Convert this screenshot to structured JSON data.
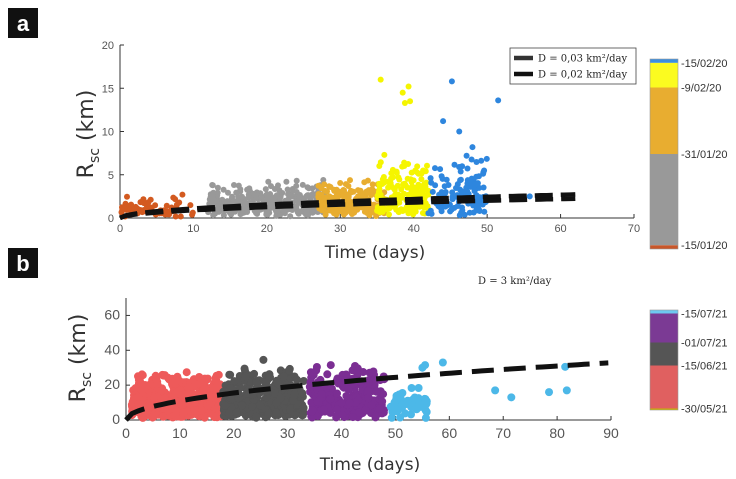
{
  "panels": [
    {
      "label": "a",
      "chart_data": {
        "type": "scatter",
        "xlabel": "Time (days)",
        "ylabel_main": "R",
        "ylabel_sub": "sc",
        "ylabel_unit": " (km)",
        "xlim": [
          0,
          70
        ],
        "ylim": [
          0,
          20
        ],
        "xticks": [
          0,
          10,
          20,
          30,
          40,
          50,
          60,
          70
        ],
        "yticks": [
          0,
          5,
          10,
          15,
          20
        ],
        "grid": false,
        "legend_position": "top-right",
        "legend": [
          {
            "text": "D = 0,03 km²/day"
          },
          {
            "text": "D = 0,02 km²/day"
          }
        ],
        "curves": [
          {
            "D": 0.03,
            "x_start": 0,
            "x_end": 62
          },
          {
            "D": 0.02,
            "x_start": 0,
            "x_end": 62
          }
        ],
        "groups": [
          {
            "x_range": [
              0,
              10
            ],
            "y_median": 0.6,
            "y_spread": 1.6,
            "n": 70,
            "color": "#d35a20"
          },
          {
            "x_range": [
              12,
              28
            ],
            "y_median": 0.9,
            "y_spread": 2.9,
            "n": 330,
            "color": "#999999"
          },
          {
            "x_range": [
              27,
              36
            ],
            "y_median": 1.0,
            "y_spread": 2.8,
            "n": 220,
            "color": "#e8ad30"
          },
          {
            "x_range": [
              35,
              42
            ],
            "y_median": 1.3,
            "y_spread": 4.5,
            "n": 170,
            "color": "#f5f500"
          },
          {
            "x_range": [
              42,
              50
            ],
            "y_median": 1.5,
            "y_spread": 4.5,
            "n": 120,
            "color": "#2e86de"
          }
        ],
        "outliers": [
          {
            "x": 35.5,
            "y": 16.0,
            "color": "#f5f500"
          },
          {
            "x": 38.5,
            "y": 14.5,
            "color": "#f5f500"
          },
          {
            "x": 39.3,
            "y": 15.2,
            "color": "#f5f500"
          },
          {
            "x": 38.8,
            "y": 13.3,
            "color": "#f5f500"
          },
          {
            "x": 39.5,
            "y": 13.5,
            "color": "#f5f500"
          },
          {
            "x": 36.0,
            "y": 7.3,
            "color": "#f5f500"
          },
          {
            "x": 38.7,
            "y": 6.4,
            "color": "#f5f500"
          },
          {
            "x": 45.2,
            "y": 15.8,
            "color": "#2e86de"
          },
          {
            "x": 51.5,
            "y": 13.6,
            "color": "#2e86de"
          },
          {
            "x": 44.0,
            "y": 11.2,
            "color": "#2e86de"
          },
          {
            "x": 46.2,
            "y": 10.0,
            "color": "#2e86de"
          },
          {
            "x": 48.0,
            "y": 8.2,
            "color": "#2e86de"
          },
          {
            "x": 47.2,
            "y": 7.2,
            "color": "#2e86de"
          },
          {
            "x": 55.8,
            "y": 2.5,
            "color": "#2e86de"
          },
          {
            "x": 8.5,
            "y": 2.7,
            "color": "#d35a20"
          },
          {
            "x": 24.0,
            "y": 3.7,
            "color": "#999999"
          }
        ],
        "colorbar": {
          "segments": [
            {
              "color": "#c8562a",
              "frac": 0.02
            },
            {
              "color": "#999999",
              "frac": 0.48
            },
            {
              "color": "#e8ad30",
              "frac": 0.35
            },
            {
              "color": "#fbfb20",
              "frac": 0.13
            },
            {
              "color": "#3a8fe0",
              "frac": 0.02
            }
          ],
          "ticks": [
            {
              "label": "-15/01/20",
              "frac": 0.02
            },
            {
              "label": "-31/01/20",
              "frac": 0.5
            },
            {
              "label": "-9/02/20",
              "frac": 0.85
            },
            {
              "label": "-15/02/20",
              "frac": 0.98
            }
          ]
        }
      }
    },
    {
      "label": "b",
      "chart_data": {
        "type": "scatter",
        "xlabel": "Time (days)",
        "ylabel_main": "R",
        "ylabel_sub": "sc",
        "ylabel_unit": " (km)",
        "xlim": [
          0,
          90
        ],
        "ylim": [
          0,
          70
        ],
        "xticks": [
          0,
          10,
          20,
          30,
          40,
          50,
          60,
          70,
          80,
          90
        ],
        "yticks": [
          0,
          20,
          40,
          60
        ],
        "grid": false,
        "annotation": "D = 3 km²/day",
        "curves": [
          {
            "D": 3,
            "x_start": 0,
            "x_end": 89.5
          }
        ],
        "groups": [
          {
            "x_range": [
              1,
              18
            ],
            "y_median": 6,
            "y_spread": 18,
            "n": 520,
            "color": "#ee5a5a"
          },
          {
            "x_range": [
              18,
              33
            ],
            "y_median": 5,
            "y_spread": 22,
            "n": 340,
            "color": "#555555"
          },
          {
            "x_range": [
              34,
              48
            ],
            "y_median": 6,
            "y_spread": 21,
            "n": 300,
            "color": "#7b2e93"
          },
          {
            "x_range": [
              49,
              56
            ],
            "y_median": 6,
            "y_spread": 10,
            "n": 60,
            "color": "#4cb8e8"
          }
        ],
        "outliers": [
          {
            "x": 25.5,
            "y": 34.5,
            "color": "#555555"
          },
          {
            "x": 22.0,
            "y": 29.5,
            "color": "#555555"
          },
          {
            "x": 38.0,
            "y": 31.5,
            "color": "#7b2e93"
          },
          {
            "x": 42.5,
            "y": 31.0,
            "color": "#7b2e93"
          },
          {
            "x": 55.0,
            "y": 30.0,
            "color": "#4cb8e8"
          },
          {
            "x": 58.8,
            "y": 33.0,
            "color": "#4cb8e8"
          },
          {
            "x": 55.5,
            "y": 31.5,
            "color": "#4cb8e8"
          },
          {
            "x": 68.5,
            "y": 17.0,
            "color": "#4cb8e8"
          },
          {
            "x": 71.5,
            "y": 13.0,
            "color": "#4cb8e8"
          },
          {
            "x": 78.5,
            "y": 16.0,
            "color": "#4cb8e8"
          },
          {
            "x": 81.5,
            "y": 30.5,
            "color": "#4cb8e8"
          },
          {
            "x": 81.8,
            "y": 17.0,
            "color": "#4cb8e8"
          }
        ],
        "colorbar": {
          "segments": [
            {
              "color": "#c8b400",
              "frac": 0.015
            },
            {
              "color": "#e06060",
              "frac": 0.43
            },
            {
              "color": "#555555",
              "frac": 0.23
            },
            {
              "color": "#7b3a94",
              "frac": 0.29
            },
            {
              "color": "#6ec8f0",
              "frac": 0.035
            }
          ],
          "ticks": [
            {
              "label": "-30/05/21",
              "frac": 0.015
            },
            {
              "label": "-15/06/21",
              "frac": 0.445
            },
            {
              "label": "-01/07/21",
              "frac": 0.675
            },
            {
              "label": "-15/07/21",
              "frac": 0.965
            }
          ]
        }
      }
    }
  ]
}
